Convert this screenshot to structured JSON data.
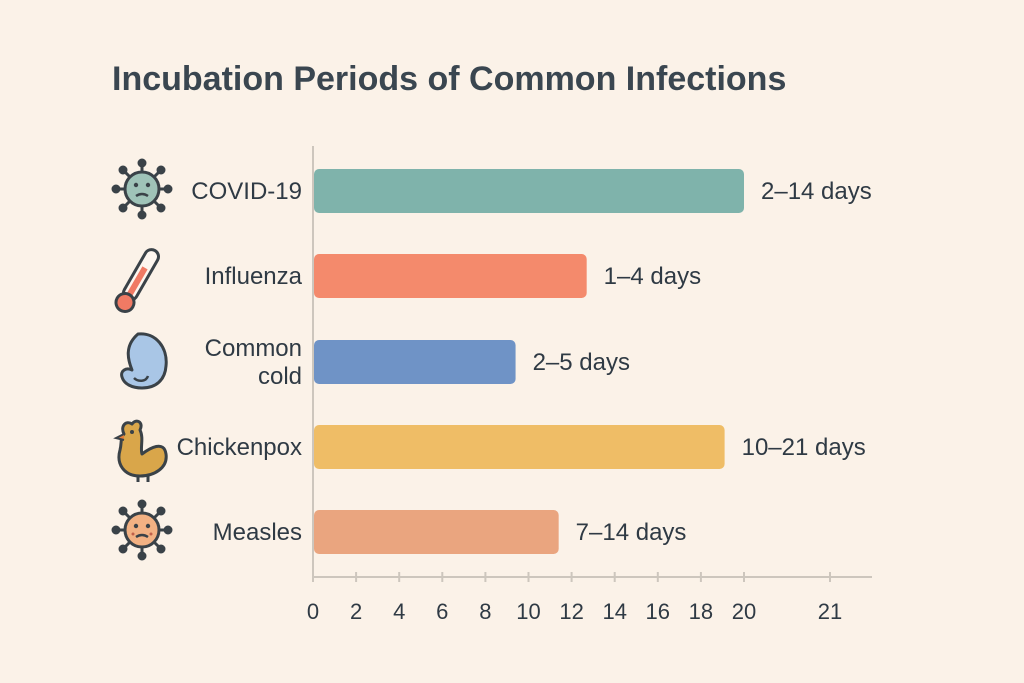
{
  "chart_data": {
    "type": "bar",
    "orientation": "horizontal",
    "title": "Incubation Periods of Common Infections",
    "xlabel": "",
    "ylabel": "",
    "xlim": [
      0,
      21
    ],
    "x_ticks": [
      "0",
      "2",
      "4",
      "6",
      "8",
      "10",
      "12",
      "14",
      "16",
      "18",
      "20",
      "21"
    ],
    "grid": false,
    "categories": [
      {
        "label_lines": [
          "COVID-19"
        ],
        "value": 20,
        "value_label": "2–14 days",
        "color": "#7fb3ab",
        "icon": "virus-icon"
      },
      {
        "label_lines": [
          "Influenza"
        ],
        "value": 12.7,
        "value_label": "1–4 days",
        "color": "#f48a6c",
        "icon": "thermometer-icon"
      },
      {
        "label_lines": [
          "Common",
          "cold"
        ],
        "value": 9.4,
        "value_label": "2–5 days",
        "color": "#6f93c6",
        "icon": "nose-icon"
      },
      {
        "label_lines": [
          "Chickenpox"
        ],
        "value": 19.1,
        "value_label": "10–21 days",
        "color": "#efbd66",
        "icon": "chicken-icon"
      },
      {
        "label_lines": [
          "Measles"
        ],
        "value": 11.4,
        "value_label": "7–14 days",
        "color": "#eaa57f",
        "icon": "measles-virus-icon"
      }
    ]
  }
}
